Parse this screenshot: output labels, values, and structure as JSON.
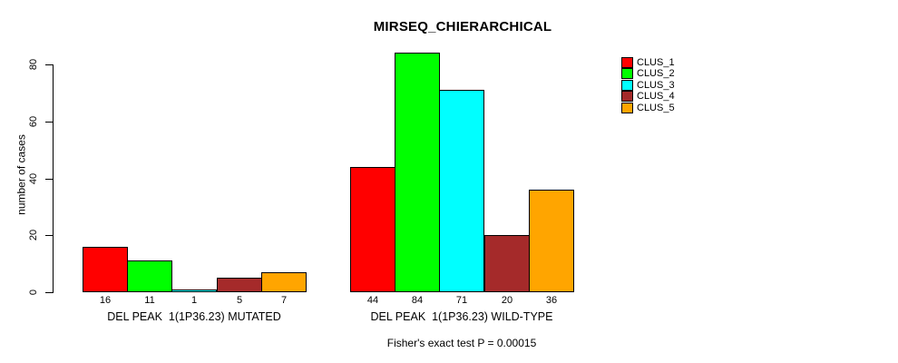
{
  "chart_data": {
    "type": "bar",
    "title": "MIRSEQ_CHIERARCHICAL",
    "ylabel": "number of cases",
    "ylim": [
      0,
      80
    ],
    "yticks": [
      0,
      20,
      40,
      60,
      80
    ],
    "grid": false,
    "legend_position": "top-right",
    "categories": [
      "DEL PEAK  1(1P36.23) MUTATED",
      "DEL PEAK  1(1P36.23) WILD-TYPE"
    ],
    "series": [
      {
        "name": "CLUS_1",
        "color": "#FF0000",
        "values": [
          16,
          44
        ]
      },
      {
        "name": "CLUS_2",
        "color": "#00FF00",
        "values": [
          11,
          84
        ]
      },
      {
        "name": "CLUS_3",
        "color": "#00FFFF",
        "values": [
          1,
          71
        ]
      },
      {
        "name": "CLUS_4",
        "color": "#A52A2A",
        "values": [
          5,
          20
        ]
      },
      {
        "name": "CLUS_5",
        "color": "#FFA500",
        "values": [
          7,
          36
        ]
      }
    ],
    "bar_value_labels": [
      [
        16,
        11,
        1,
        5,
        7
      ],
      [
        44,
        84,
        71,
        20,
        36
      ]
    ],
    "footnote": "Fisher's exact test P = 0.00015",
    "axis_color": "#000000",
    "bar_border_color": "#000000"
  }
}
